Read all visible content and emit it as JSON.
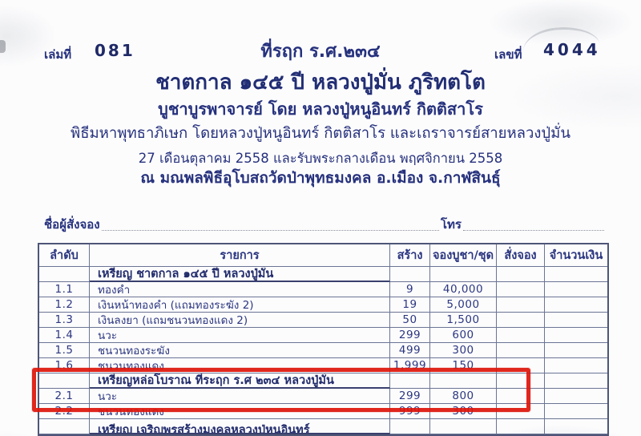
{
  "colors": {
    "ink": "#26317d",
    "grid": "#6b7494",
    "highlight_red": "#de150b"
  },
  "header": {
    "book_label": "เล่มที่",
    "book_no": "081",
    "commemorative_title": "ที่รฤก ร.ศ.๒๓๔",
    "serial_label": "เลขที่",
    "serial_no": "4044"
  },
  "event": {
    "heading": "ชาตกาล ๑๔๕ ปี หลวงปู่มั่น ภูริทตโต",
    "line1": "บูชาบูรพาจารย์ โดย หลวงปู่หนูอินทร์ กิตติสาโร",
    "line2": "พิธีมหาพุทธาภิเษก โดยหลวงปู่หนูอินทร์ กิตติสาโร และเถราจารย์สายหลวงปู่มั่น",
    "line3": "27 เดือนตุลาคม 2558 และรับพระกลางเดือน พฤศจิกายน 2558",
    "line4": "ณ มณพลพิธีอุโบสถวัดป่าพุทธมงคล อ.เมือง จ.กาฬสินธุ์"
  },
  "form": {
    "orderer_label": "ชื่อผู้สั่งจอง",
    "orderer_value": "",
    "phone_label": "โทร",
    "phone_value": ""
  },
  "table": {
    "headers": [
      "ลำดับ",
      "รายการ",
      "สร้าง",
      "จองบูชา/ชุด",
      "สั่งจอง",
      "จำนวนเงิน"
    ],
    "rows": [
      {
        "type": "group",
        "no": "",
        "item": "เหรียญ ชาตกาล ๑๔๕ ปี หลวงปู่มั่น",
        "made": "",
        "price": "",
        "order": "",
        "amount": ""
      },
      {
        "type": "item",
        "no": "1.1",
        "item": "ทองคำ",
        "made": "9",
        "price": "40,000",
        "order": "",
        "amount": ""
      },
      {
        "type": "item",
        "no": "1.2",
        "item": "เงินหน้าทองคำ (แถมทองระฆัง 2)",
        "made": "19",
        "price": "5,000",
        "order": "",
        "amount": ""
      },
      {
        "type": "item",
        "no": "1.3",
        "item": "เงินลงยา (แถมชนวนทองแดง 2)",
        "made": "50",
        "price": "1,500",
        "order": "",
        "amount": ""
      },
      {
        "type": "item",
        "no": "1.4",
        "item": "นวะ",
        "made": "299",
        "price": "600",
        "order": "",
        "amount": ""
      },
      {
        "type": "item",
        "no": "1.5",
        "item": "ชนวนทองระฆัง",
        "made": "499",
        "price": "300",
        "order": "",
        "amount": ""
      },
      {
        "type": "item",
        "no": "1.6",
        "item": "ชนวนทองแดง",
        "made": "1,999",
        "price": "150",
        "order": "",
        "amount": ""
      },
      {
        "type": "group",
        "no": "",
        "item": "เหรียญหล่อโบราณ ที่ระฤก ร.ศ ๒๓๔ หลวงปู่มั่น",
        "made": "",
        "price": "",
        "order": "",
        "amount": "",
        "highlighted": true
      },
      {
        "type": "item",
        "no": "2.1",
        "item": "นวะ",
        "made": "299",
        "price": "800",
        "order": "",
        "amount": "",
        "highlighted": true
      },
      {
        "type": "item",
        "no": "2.2",
        "item": "ชนวนทองแดง",
        "made": "999",
        "price": "300",
        "order": "",
        "amount": ""
      },
      {
        "type": "group",
        "no": "",
        "item": "เหรียญ เจริญพรสร้างมงคลหลวงปู่หนูอินทร์",
        "made": "",
        "price": "",
        "order": "",
        "amount": "",
        "clipped": true
      }
    ]
  },
  "annotation": {
    "shape": "red-rectangle",
    "covers": [
      "เหรียญหล่อโบราณ ที่ระฤก ร.ศ ๒๓๔ หลวงปู่มั่น",
      "2.1 นวะ 299 800"
    ]
  }
}
